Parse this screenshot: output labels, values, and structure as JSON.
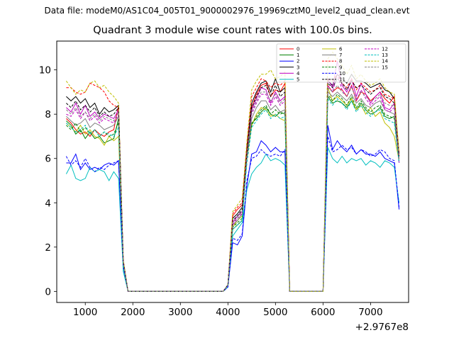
{
  "figure": {
    "suptitle": "Data file: modeM0/AS1C04_005T01_9000002976_19969cztM0_level2_quad_clean.evt"
  },
  "chart_data": {
    "type": "line",
    "title": "Quadrant 3 module wise count rates with 100.0s bins.",
    "xlabel": "",
    "ylabel": "",
    "x_offset_label": "+2.9767e8",
    "xlim": [
      400,
      7800
    ],
    "ylim": [
      -0.5,
      11.3
    ],
    "xticks": [
      1000,
      2000,
      3000,
      4000,
      5000,
      6000,
      7000
    ],
    "yticks": [
      0,
      2,
      4,
      6,
      8,
      10
    ],
    "legend_position": "top-right",
    "x": [
      600,
      700,
      800,
      900,
      1000,
      1100,
      1200,
      1300,
      1400,
      1500,
      1600,
      1700,
      1800,
      1900,
      2000,
      2100,
      2200,
      2300,
      2400,
      2500,
      2600,
      2700,
      2800,
      2900,
      3000,
      3100,
      3200,
      3300,
      3400,
      3500,
      3600,
      3700,
      3800,
      3900,
      4000,
      4100,
      4200,
      4300,
      4400,
      4500,
      4600,
      4700,
      4800,
      4900,
      5000,
      5100,
      5200,
      5300,
      5400,
      5500,
      5600,
      5700,
      5800,
      5900,
      6000,
      6100,
      6200,
      6300,
      6400,
      6500,
      6600,
      6700,
      6800,
      6900,
      7000,
      7100,
      7200,
      7300,
      7400,
      7500,
      7600
    ],
    "series": [
      {
        "name": "0",
        "color": "#ff0000",
        "dash": "solid",
        "values": [
          7.8,
          7.6,
          7.3,
          7.1,
          7.2,
          7.0,
          7.3,
          7.1,
          7.0,
          7.2,
          7.3,
          8.4,
          1.3,
          0,
          0,
          0,
          0,
          0,
          0,
          0,
          0,
          0,
          0,
          0,
          0,
          0,
          0,
          0,
          0,
          0,
          0,
          0,
          0,
          0,
          0.3,
          3.4,
          3.7,
          3.9,
          6.5,
          8.3,
          8.9,
          9.3,
          9.4,
          8.8,
          9.1,
          9.0,
          9.4,
          0,
          0,
          0,
          0,
          0,
          0,
          0,
          0,
          9.3,
          9.0,
          9.2,
          9.1,
          8.8,
          9.3,
          8.6,
          9.0,
          8.9,
          8.6,
          8.8,
          9.0,
          8.7,
          8.5,
          8.8,
          6.1
        ]
      },
      {
        "name": "1",
        "color": "#008000",
        "dash": "solid",
        "values": [
          7.7,
          7.5,
          7.1,
          7.3,
          6.9,
          7.2,
          6.9,
          7.0,
          6.7,
          6.8,
          6.9,
          7.8,
          1.2,
          0,
          0,
          0,
          0,
          0,
          0,
          0,
          0,
          0,
          0,
          0,
          0,
          0,
          0,
          0,
          0,
          0,
          0,
          0,
          0,
          0,
          0.3,
          2.8,
          3.0,
          3.2,
          6.1,
          7.6,
          7.8,
          8.1,
          8.3,
          8.0,
          7.9,
          8.1,
          8.0,
          0,
          0,
          0,
          0,
          0,
          0,
          0,
          0,
          8.8,
          8.5,
          8.6,
          8.5,
          8.3,
          8.6,
          8.2,
          8.5,
          8.2,
          8.0,
          8.1,
          8.3,
          7.9,
          7.8,
          7.9,
          6.0
        ]
      },
      {
        "name": "2",
        "color": "#0000ff",
        "dash": "solid",
        "values": [
          5.8,
          5.8,
          6.2,
          5.5,
          5.8,
          5.5,
          5.6,
          5.5,
          5.7,
          5.8,
          5.7,
          5.9,
          1.1,
          0,
          0,
          0,
          0,
          0,
          0,
          0,
          0,
          0,
          0,
          0,
          0,
          0,
          0,
          0,
          0,
          0,
          0,
          0,
          0,
          0,
          0.2,
          2.2,
          2.1,
          2.5,
          4.8,
          6.2,
          6.3,
          6.8,
          6.6,
          6.3,
          6.5,
          6.3,
          6.3,
          0,
          0,
          0,
          0,
          0,
          0,
          0,
          0,
          7.5,
          6.4,
          6.8,
          6.5,
          6.3,
          6.6,
          6.2,
          6.4,
          6.2,
          6.2,
          6.1,
          6.3,
          6.0,
          5.9,
          5.8,
          3.7
        ]
      },
      {
        "name": "3",
        "color": "#000000",
        "dash": "solid",
        "values": [
          8.8,
          8.6,
          8.8,
          8.5,
          8.7,
          8.3,
          8.5,
          8.0,
          8.3,
          8.1,
          8.2,
          8.4,
          1.4,
          0,
          0,
          0,
          0,
          0,
          0,
          0,
          0,
          0,
          0,
          0,
          0,
          0,
          0,
          0,
          0,
          0,
          0,
          0,
          0,
          0,
          0.3,
          3.3,
          3.5,
          3.8,
          6.4,
          8.5,
          9.0,
          9.4,
          9.5,
          9.0,
          9.6,
          9.0,
          9.2,
          0,
          0,
          0,
          0,
          0,
          0,
          0,
          0,
          9.5,
          9.3,
          9.8,
          9.6,
          9.4,
          9.8,
          9.5,
          9.5,
          9.4,
          9.2,
          9.3,
          9.4,
          9.1,
          9.0,
          8.7,
          6.2
        ]
      },
      {
        "name": "4",
        "color": "#c000c0",
        "dash": "solid",
        "values": [
          8.3,
          8.1,
          8.5,
          8.0,
          8.4,
          7.9,
          8.1,
          7.8,
          8.0,
          7.9,
          7.8,
          8.2,
          1.3,
          0,
          0,
          0,
          0,
          0,
          0,
          0,
          0,
          0,
          0,
          0,
          0,
          0,
          0,
          0,
          0,
          0,
          0,
          0,
          0,
          0,
          0.3,
          3.1,
          3.4,
          3.6,
          6.2,
          8.2,
          8.7,
          9.2,
          9.1,
          8.5,
          9.0,
          8.6,
          8.8,
          0,
          0,
          0,
          0,
          0,
          0,
          0,
          0,
          9.6,
          9.2,
          10.4,
          9.3,
          9.0,
          9.6,
          8.8,
          9.4,
          8.9,
          8.5,
          8.8,
          9.0,
          8.3,
          8.2,
          8.5,
          5.8
        ]
      },
      {
        "name": "5",
        "color": "#00bfbf",
        "dash": "solid",
        "values": [
          5.3,
          5.7,
          5.1,
          5.0,
          5.1,
          5.6,
          5.4,
          5.5,
          5.4,
          5.0,
          5.4,
          5.1,
          0.9,
          0,
          0,
          0,
          0,
          0,
          0,
          0,
          0,
          0,
          0,
          0,
          0,
          0,
          0,
          0,
          0,
          0,
          0,
          0,
          0,
          0,
          0.2,
          2.5,
          2.8,
          3.1,
          4.6,
          5.3,
          5.6,
          5.8,
          6.2,
          5.9,
          6.0,
          5.9,
          5.7,
          0,
          0,
          0,
          0,
          0,
          0,
          0,
          0,
          6.5,
          6.0,
          5.8,
          6.1,
          5.8,
          6.0,
          5.9,
          6.0,
          5.7,
          5.9,
          5.8,
          5.6,
          5.9,
          5.8,
          5.6,
          4.0
        ]
      },
      {
        "name": "6",
        "color": "#bfbf00",
        "dash": "solid",
        "values": [
          7.6,
          7.4,
          7.2,
          7.5,
          7.1,
          7.3,
          7.0,
          6.9,
          6.6,
          7.0,
          6.8,
          7.0,
          1.2,
          0,
          0,
          0,
          0,
          0,
          0,
          0,
          0,
          0,
          0,
          0,
          0,
          0,
          0,
          0,
          0,
          0,
          0,
          0,
          0,
          0,
          0.3,
          2.9,
          3.2,
          3.4,
          6.0,
          7.5,
          8.0,
          8.3,
          8.2,
          7.9,
          8.0,
          7.8,
          7.7,
          0,
          0,
          0,
          0,
          0,
          0,
          0,
          0,
          9.2,
          8.6,
          8.8,
          8.6,
          8.4,
          8.7,
          8.2,
          8.4,
          8.0,
          8.3,
          7.9,
          8.1,
          7.6,
          7.4,
          7.0,
          5.9
        ]
      },
      {
        "name": "7",
        "color": "#808080",
        "dash": "solid",
        "values": [
          7.9,
          7.7,
          7.5,
          7.6,
          7.8,
          7.4,
          7.6,
          7.5,
          7.3,
          7.4,
          7.5,
          7.9,
          1.3,
          0,
          0,
          0,
          0,
          0,
          0,
          0,
          0,
          0,
          0,
          0,
          0,
          0,
          0,
          0,
          0,
          0,
          0,
          0,
          0,
          0,
          0.3,
          3.0,
          3.2,
          3.5,
          6.1,
          7.8,
          8.3,
          8.6,
          8.6,
          8.2,
          8.4,
          8.1,
          8.2,
          0,
          0,
          0,
          0,
          0,
          0,
          0,
          0,
          9.0,
          8.8,
          9.0,
          8.8,
          8.6,
          8.9,
          8.5,
          8.7,
          8.4,
          8.3,
          8.5,
          8.6,
          8.2,
          8.1,
          8.0,
          6.0
        ]
      },
      {
        "name": "8",
        "color": "#ff0000",
        "dash": "dashed",
        "values": [
          9.2,
          9.2,
          9.0,
          8.9,
          9.0,
          9.4,
          9.3,
          9.2,
          9.0,
          8.6,
          8.4,
          8.3,
          1.4,
          0,
          0,
          0,
          0,
          0,
          0,
          0,
          0,
          0,
          0,
          0,
          0,
          0,
          0,
          0,
          0,
          0,
          0,
          0,
          0,
          0,
          0.3,
          3.5,
          3.8,
          4.0,
          6.6,
          8.8,
          9.2,
          9.6,
          9.5,
          9.2,
          9.4,
          9.3,
          9.5,
          0,
          0,
          0,
          0,
          0,
          0,
          0,
          0,
          9.6,
          9.5,
          9.8,
          9.4,
          9.2,
          9.6,
          9.1,
          9.4,
          9.2,
          9.0,
          9.1,
          9.3,
          8.9,
          8.8,
          8.7,
          6.2
        ]
      },
      {
        "name": "9",
        "color": "#008000",
        "dash": "dashed",
        "values": [
          7.5,
          7.3,
          7.6,
          7.2,
          7.4,
          7.1,
          7.3,
          7.0,
          7.2,
          7.0,
          7.1,
          7.6,
          1.2,
          0,
          0,
          0,
          0,
          0,
          0,
          0,
          0,
          0,
          0,
          0,
          0,
          0,
          0,
          0,
          0,
          0,
          0,
          0,
          0,
          0,
          0.3,
          2.9,
          3.1,
          3.3,
          6.0,
          7.5,
          7.9,
          8.2,
          8.4,
          8.0,
          8.2,
          8.0,
          8.1,
          0,
          0,
          0,
          0,
          0,
          0,
          0,
          0,
          8.9,
          8.6,
          8.9,
          8.7,
          8.4,
          8.8,
          8.3,
          8.6,
          8.3,
          8.1,
          8.3,
          8.4,
          8.0,
          7.9,
          7.8,
          5.9
        ]
      },
      {
        "name": "10",
        "color": "#0000ff",
        "dash": "dashed",
        "values": [
          6.1,
          5.7,
          5.9,
          5.6,
          6.0,
          5.6,
          5.4,
          5.6,
          5.5,
          5.7,
          5.8,
          5.9,
          1.1,
          0,
          0,
          0,
          0,
          0,
          0,
          0,
          0,
          0,
          0,
          0,
          0,
          0,
          0,
          0,
          0,
          0,
          0,
          0,
          0,
          0,
          0.2,
          2.4,
          2.3,
          2.6,
          5.0,
          6.0,
          6.1,
          6.4,
          6.2,
          6.1,
          6.2,
          6.1,
          6.4,
          0,
          0,
          0,
          0,
          0,
          0,
          0,
          0,
          7.0,
          6.3,
          6.4,
          6.6,
          6.4,
          6.5,
          6.2,
          6.4,
          6.3,
          6.1,
          6.2,
          6.4,
          6.3,
          6.0,
          5.9,
          3.8
        ]
      },
      {
        "name": "11",
        "color": "#000000",
        "dash": "dashed",
        "values": [
          8.5,
          8.3,
          8.6,
          8.2,
          8.4,
          8.1,
          8.3,
          7.9,
          8.1,
          7.9,
          8.0,
          8.3,
          1.3,
          0,
          0,
          0,
          0,
          0,
          0,
          0,
          0,
          0,
          0,
          0,
          0,
          0,
          0,
          0,
          0,
          0,
          0,
          0,
          0,
          0,
          0.3,
          3.2,
          3.4,
          3.7,
          6.3,
          8.3,
          8.8,
          9.2,
          9.3,
          8.8,
          9.3,
          8.8,
          9.0,
          0,
          0,
          0,
          0,
          0,
          0,
          0,
          0,
          9.4,
          9.2,
          9.6,
          9.4,
          9.1,
          9.5,
          9.2,
          9.3,
          9.1,
          8.9,
          9.1,
          9.2,
          8.8,
          8.7,
          8.5,
          6.1
        ]
      },
      {
        "name": "12",
        "color": "#c000c0",
        "dash": "dashed",
        "values": [
          8.0,
          7.9,
          8.2,
          7.8,
          8.1,
          7.7,
          7.9,
          7.6,
          7.8,
          7.7,
          7.6,
          8.0,
          1.3,
          0,
          0,
          0,
          0,
          0,
          0,
          0,
          0,
          0,
          0,
          0,
          0,
          0,
          0,
          0,
          0,
          0,
          0,
          0,
          0,
          0,
          0.3,
          3.0,
          3.3,
          3.5,
          6.1,
          8.0,
          8.5,
          8.9,
          8.9,
          8.4,
          8.8,
          8.4,
          8.6,
          0,
          0,
          0,
          0,
          0,
          0,
          0,
          0,
          9.3,
          9.0,
          9.8,
          9.1,
          8.8,
          9.3,
          8.6,
          9.1,
          8.7,
          8.4,
          8.6,
          8.8,
          8.2,
          8.1,
          8.3,
          5.8
        ]
      },
      {
        "name": "13",
        "color": "#00bfbf",
        "dash": "dashed",
        "values": [
          7.6,
          7.4,
          7.2,
          7.3,
          7.5,
          7.1,
          7.3,
          7.0,
          7.2,
          7.1,
          7.0,
          7.4,
          1.2,
          0,
          0,
          0,
          0,
          0,
          0,
          0,
          0,
          0,
          0,
          0,
          0,
          0,
          0,
          0,
          0,
          0,
          0,
          0,
          0,
          0,
          0.3,
          2.8,
          3.0,
          3.2,
          5.8,
          7.4,
          7.7,
          8.0,
          8.2,
          7.8,
          8.0,
          7.8,
          7.9,
          0,
          0,
          0,
          0,
          0,
          0,
          0,
          0,
          8.7,
          8.4,
          8.7,
          8.5,
          8.2,
          8.6,
          8.1,
          8.4,
          8.1,
          7.9,
          8.1,
          8.2,
          7.8,
          7.7,
          7.6,
          5.8
        ]
      },
      {
        "name": "14",
        "color": "#bfbf00",
        "dash": "dashed",
        "values": [
          9.5,
          9.2,
          8.9,
          9.1,
          9.0,
          9.4,
          9.5,
          9.2,
          9.3,
          9.0,
          8.8,
          8.5,
          1.4,
          0,
          0,
          0,
          0,
          0,
          0,
          0,
          0,
          0,
          0,
          0,
          0,
          0,
          0,
          0,
          0,
          0,
          0,
          0,
          0,
          0,
          0.3,
          3.6,
          3.9,
          4.2,
          6.8,
          9.1,
          9.5,
          9.8,
          9.8,
          10.0,
          9.6,
          9.7,
          9.9,
          0,
          0,
          0,
          0,
          0,
          0,
          0,
          0,
          10.5,
          10.8,
          10.5,
          10.2,
          9.8,
          10.2,
          9.6,
          9.8,
          9.5,
          9.3,
          9.4,
          9.6,
          9.2,
          9.0,
          8.9,
          6.3
        ]
      },
      {
        "name": "15",
        "color": "#808080",
        "dash": "dashed",
        "values": [
          8.2,
          8.0,
          8.3,
          7.9,
          8.1,
          7.8,
          8.0,
          7.7,
          7.9,
          7.8,
          7.7,
          8.1,
          1.3,
          0,
          0,
          0,
          0,
          0,
          0,
          0,
          0,
          0,
          0,
          0,
          0,
          0,
          0,
          0,
          0,
          0,
          0,
          0,
          0,
          0,
          0.3,
          3.1,
          3.3,
          3.6,
          6.2,
          8.1,
          8.6,
          9.0,
          9.0,
          8.6,
          8.9,
          8.5,
          8.7,
          0,
          0,
          0,
          0,
          0,
          0,
          0,
          0,
          9.2,
          9.0,
          9.3,
          9.0,
          8.8,
          9.2,
          8.7,
          9.0,
          8.8,
          8.6,
          8.7,
          8.9,
          8.5,
          8.4,
          8.4,
          6.0
        ]
      }
    ]
  }
}
